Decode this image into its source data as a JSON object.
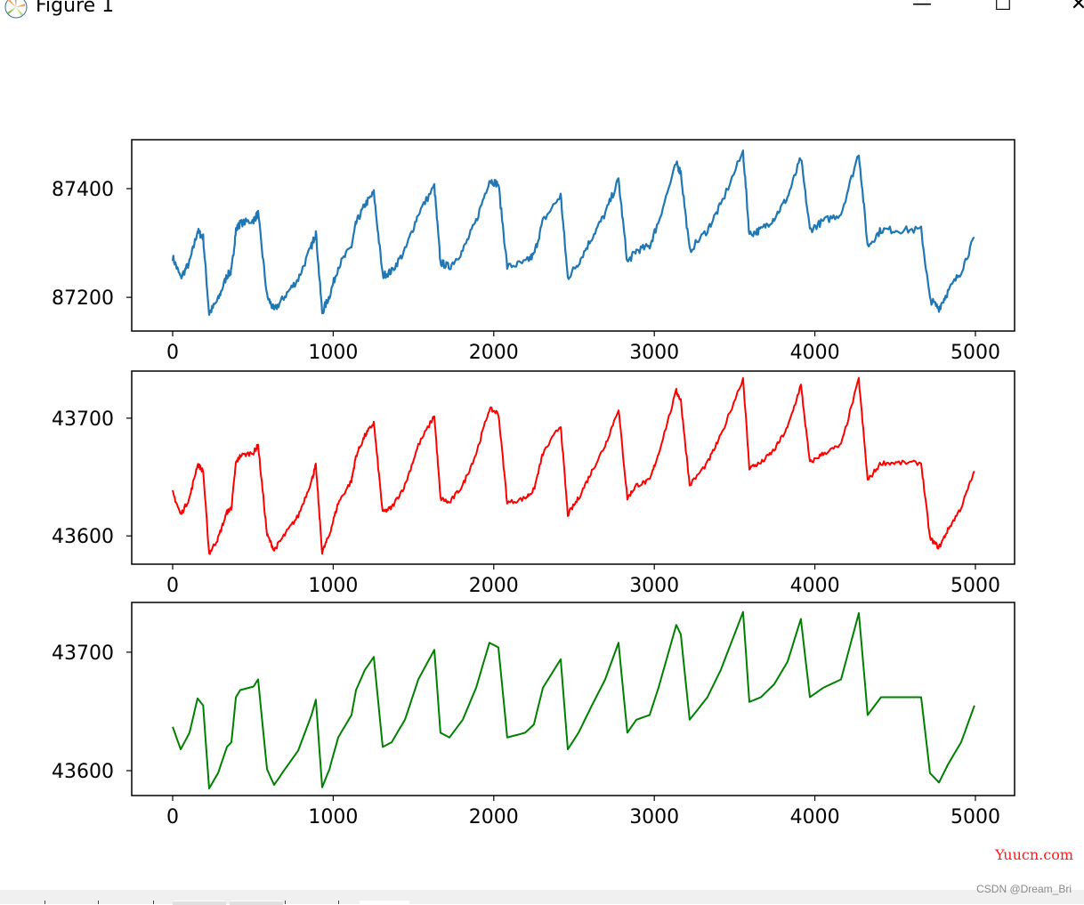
{
  "window": {
    "title": "Figure 1",
    "minimize": "—",
    "maximize": "☐",
    "close": "✕",
    "icon": "matplotlib-logo-icon"
  },
  "watermark": "Yuucn.com",
  "credit": "CSDN @Dream_Bri",
  "chart_data": [
    {
      "type": "line",
      "title": "",
      "xlabel": "",
      "ylabel": "",
      "color": "#1f77b4",
      "xlim": [
        -255,
        5244
      ],
      "ylim": [
        87138,
        87490
      ],
      "xticks": [
        "0",
        "1000",
        "2000",
        "3000",
        "4000",
        "5000"
      ],
      "xtick_values": [
        0,
        1000,
        2000,
        3000,
        4000,
        5000
      ],
      "yticks": [
        "87200",
        "87400"
      ],
      "ytick_values": [
        87200,
        87400
      ],
      "noise": 7,
      "x": [
        0,
        50,
        105,
        155,
        190,
        227,
        283,
        338,
        366,
        394,
        421,
        504,
        532,
        588,
        632,
        698,
        782,
        865,
        892,
        931,
        976,
        1031,
        1114,
        1142,
        1197,
        1253,
        1308,
        1364,
        1447,
        1530,
        1630,
        1668,
        1724,
        1807,
        1890,
        1973,
        2029,
        2084,
        2195,
        2250,
        2306,
        2417,
        2461,
        2528,
        2611,
        2694,
        2777,
        2832,
        2888,
        2971,
        3026,
        3137,
        3165,
        3220,
        3331,
        3414,
        3553,
        3592,
        3664,
        3747,
        3830,
        3913,
        3969,
        4052,
        4163,
        4274,
        4329,
        4412,
        4523,
        4662,
        4717,
        4773,
        4828,
        4911,
        4994
      ],
      "y": [
        87274,
        87236,
        87264,
        87322,
        87310,
        87170,
        87196,
        87240,
        87248,
        87324,
        87336,
        87342,
        87354,
        87202,
        87176,
        87202,
        87234,
        87294,
        87320,
        87172,
        87202,
        87256,
        87294,
        87336,
        87370,
        87392,
        87240,
        87248,
        87286,
        87354,
        87404,
        87264,
        87256,
        87286,
        87340,
        87416,
        87408,
        87256,
        87264,
        87278,
        87340,
        87388,
        87236,
        87264,
        87310,
        87354,
        87416,
        87264,
        87286,
        87294,
        87340,
        87446,
        87430,
        87286,
        87324,
        87370,
        87468,
        87316,
        87324,
        87346,
        87384,
        87456,
        87324,
        87340,
        87354,
        87466,
        87294,
        87324,
        87324,
        87324,
        87196,
        87180,
        87210,
        87248,
        87310
      ]
    },
    {
      "type": "line",
      "title": "",
      "xlabel": "",
      "ylabel": "",
      "color": "#ff0000",
      "xlim": [
        -255,
        5244
      ],
      "ylim": [
        43576,
        43740
      ],
      "xticks": [
        "0",
        "1000",
        "2000",
        "3000",
        "4000",
        "5000"
      ],
      "xtick_values": [
        0,
        1000,
        2000,
        3000,
        4000,
        5000
      ],
      "yticks": [
        "43600",
        "43700"
      ],
      "ytick_values": [
        43600,
        43700
      ],
      "noise": 2,
      "x": [
        0,
        50,
        105,
        155,
        190,
        227,
        283,
        338,
        366,
        394,
        421,
        504,
        532,
        588,
        632,
        698,
        782,
        865,
        892,
        931,
        976,
        1031,
        1114,
        1142,
        1197,
        1253,
        1308,
        1364,
        1447,
        1530,
        1630,
        1668,
        1724,
        1807,
        1890,
        1973,
        2029,
        2084,
        2195,
        2250,
        2306,
        2417,
        2461,
        2528,
        2611,
        2694,
        2777,
        2832,
        2888,
        2971,
        3026,
        3137,
        3165,
        3220,
        3331,
        3414,
        3553,
        3592,
        3664,
        3747,
        3830,
        3913,
        3969,
        4052,
        4163,
        4274,
        4329,
        4412,
        4523,
        4662,
        4717,
        4773,
        4828,
        4911,
        4994
      ],
      "y": [
        43637,
        43618,
        43632,
        43661,
        43655,
        43585,
        43598,
        43620,
        43624,
        43662,
        43668,
        43671,
        43677,
        43601,
        43588,
        43601,
        43617,
        43647,
        43660,
        43586,
        43601,
        43628,
        43647,
        43668,
        43685,
        43696,
        43620,
        43624,
        43643,
        43677,
        43702,
        43632,
        43628,
        43643,
        43670,
        43708,
        43704,
        43628,
        43632,
        43639,
        43670,
        43694,
        43618,
        43632,
        43655,
        43677,
        43708,
        43632,
        43643,
        43647,
        43670,
        43723,
        43715,
        43643,
        43662,
        43685,
        43734,
        43658,
        43662,
        43673,
        43692,
        43728,
        43662,
        43670,
        43677,
        43733,
        43647,
        43662,
        43662,
        43662,
        43598,
        43590,
        43605,
        43624,
        43655
      ]
    },
    {
      "type": "line",
      "title": "",
      "xlabel": "",
      "ylabel": "",
      "color": "#008000",
      "xlim": [
        -255,
        5244
      ],
      "ylim": [
        43579,
        43742
      ],
      "xticks": [
        "0",
        "1000",
        "2000",
        "3000",
        "4000",
        "5000"
      ],
      "xtick_values": [
        0,
        1000,
        2000,
        3000,
        4000,
        5000
      ],
      "yticks": [
        "43600",
        "43700"
      ],
      "ytick_values": [
        43600,
        43700
      ],
      "noise": 0,
      "x": [
        0,
        50,
        105,
        155,
        190,
        227,
        283,
        338,
        366,
        394,
        421,
        504,
        532,
        588,
        632,
        698,
        782,
        865,
        892,
        931,
        976,
        1031,
        1114,
        1142,
        1197,
        1253,
        1308,
        1364,
        1447,
        1530,
        1630,
        1668,
        1724,
        1807,
        1890,
        1973,
        2029,
        2084,
        2195,
        2250,
        2306,
        2417,
        2461,
        2528,
        2611,
        2694,
        2777,
        2832,
        2888,
        2971,
        3026,
        3137,
        3165,
        3220,
        3331,
        3414,
        3553,
        3592,
        3664,
        3747,
        3830,
        3913,
        3969,
        4052,
        4163,
        4274,
        4329,
        4412,
        4523,
        4662,
        4717,
        4773,
        4828,
        4911,
        4994
      ],
      "y": [
        43637,
        43618,
        43632,
        43661,
        43655,
        43585,
        43598,
        43620,
        43624,
        43662,
        43668,
        43671,
        43677,
        43601,
        43588,
        43601,
        43617,
        43647,
        43660,
        43586,
        43601,
        43628,
        43647,
        43668,
        43685,
        43696,
        43620,
        43624,
        43643,
        43677,
        43702,
        43632,
        43628,
        43643,
        43670,
        43708,
        43704,
        43628,
        43632,
        43639,
        43670,
        43694,
        43618,
        43632,
        43655,
        43677,
        43708,
        43632,
        43643,
        43647,
        43670,
        43723,
        43715,
        43643,
        43662,
        43685,
        43734,
        43658,
        43662,
        43673,
        43692,
        43728,
        43662,
        43670,
        43677,
        43733,
        43647,
        43662,
        43662,
        43662,
        43598,
        43590,
        43605,
        43624,
        43655
      ]
    }
  ]
}
